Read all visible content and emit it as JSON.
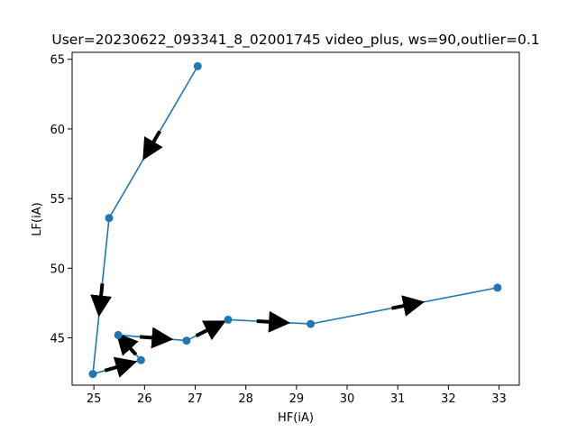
{
  "chart_data": {
    "type": "line",
    "title": "User=20230622_093341_8_02001745 video_plus, ws=90,outlier=0.1",
    "xlabel": "HF(iA)",
    "ylabel": "LF(iA)",
    "xlim": [
      24.57,
      33.4
    ],
    "ylim": [
      41.6,
      65.5
    ],
    "xticks": [
      25,
      26,
      27,
      28,
      29,
      30,
      31,
      32,
      33
    ],
    "yticks": [
      45,
      50,
      55,
      60,
      65
    ],
    "grid": false,
    "line_color": "#1f77b4",
    "marker": "circle",
    "arrows": true,
    "arrow_color": "#000000",
    "x": [
      27.05,
      25.3,
      24.98,
      25.93,
      25.48,
      26.83,
      27.65,
      29.28,
      32.97
    ],
    "y": [
      64.5,
      53.6,
      42.4,
      43.4,
      45.2,
      44.8,
      46.3,
      46.0,
      48.6
    ]
  }
}
